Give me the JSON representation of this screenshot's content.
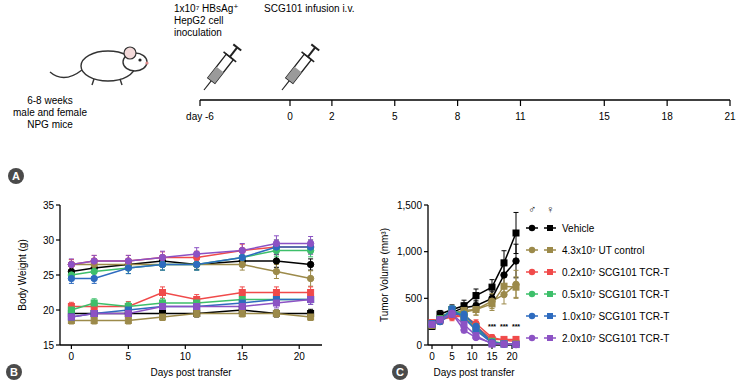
{
  "timeline": {
    "panel_label": "A",
    "subject": [
      "6-8 weeks",
      "male and female",
      "NPG mice"
    ],
    "events": [
      {
        "day": -6,
        "text": [
          "1x10⁷ HBsAg⁺",
          "HepG2 cell",
          "inoculation"
        ]
      },
      {
        "day": 0,
        "text": [
          "SCG101 infusion i.v."
        ]
      }
    ],
    "days": [
      {
        "value": -6,
        "label": "day -6"
      },
      0,
      2,
      5,
      8,
      11,
      15,
      18,
      21
    ]
  },
  "chart_data": [
    {
      "type": "line",
      "panel_label": "B",
      "x_label": "Days post transfer",
      "y_label": "Body Weight (g)",
      "x": [
        0,
        2,
        5,
        8,
        11,
        15,
        18,
        21
      ],
      "xlim": [
        -1,
        22
      ],
      "xticks": [
        0,
        5,
        10,
        15,
        20
      ],
      "ylim": [
        15,
        35
      ],
      "yticks": [
        15,
        20,
        25,
        30,
        35
      ],
      "grid": false,
      "series": [
        {
          "color": "#000000",
          "marker": "circle",
          "values": [
            25.5,
            26,
            26.5,
            27,
            26.5,
            27,
            27,
            26.5
          ],
          "errors": [
            0.8,
            0.7,
            0.7,
            0.8,
            0.7,
            0.8,
            0.9,
            0.8
          ]
        },
        {
          "color": "#000000",
          "marker": "square",
          "values": [
            19.5,
            19.5,
            19.5,
            19.5,
            19.5,
            20,
            19.5,
            19.5
          ],
          "errors": [
            0.5,
            0.5,
            0.5,
            0.5,
            0.5,
            0.6,
            0.5,
            0.6
          ]
        },
        {
          "color": "#9c8a4a",
          "marker": "circle",
          "values": [
            26.5,
            26.5,
            26.5,
            26.5,
            26.5,
            26.5,
            25.5,
            24.5
          ],
          "errors": [
            0.7,
            0.7,
            0.7,
            0.8,
            0.8,
            0.8,
            1.0,
            1.1
          ]
        },
        {
          "color": "#9c8a4a",
          "marker": "square",
          "values": [
            18.5,
            18.5,
            18.5,
            19,
            19.5,
            19.5,
            19.5,
            19
          ],
          "errors": [
            0.5,
            0.5,
            0.5,
            0.5,
            0.5,
            0.5,
            0.5,
            0.5
          ]
        },
        {
          "color": "#f04a4a",
          "marker": "circle",
          "values": [
            26.5,
            27,
            27,
            27.5,
            27.5,
            28.5,
            29,
            29
          ],
          "errors": [
            0.7,
            0.8,
            0.8,
            0.8,
            0.9,
            0.9,
            1.0,
            1.0
          ]
        },
        {
          "color": "#f04a4a",
          "marker": "square",
          "values": [
            20.5,
            20.5,
            20.5,
            22.5,
            21.5,
            22.5,
            22.5,
            22.5
          ],
          "errors": [
            0.6,
            0.6,
            0.7,
            0.8,
            0.7,
            0.8,
            0.8,
            0.8
          ]
        },
        {
          "color": "#3dbf6a",
          "marker": "circle",
          "values": [
            25,
            25.5,
            26,
            26.5,
            26.5,
            27.5,
            28.5,
            28.5
          ],
          "errors": [
            0.7,
            0.7,
            0.8,
            0.8,
            0.8,
            0.9,
            0.9,
            0.9
          ]
        },
        {
          "color": "#3dbf6a",
          "marker": "square",
          "values": [
            20,
            21,
            20.5,
            21,
            21,
            21.5,
            21.5,
            21.5
          ],
          "errors": [
            0.6,
            0.6,
            0.6,
            0.6,
            0.6,
            0.7,
            0.7,
            0.7
          ]
        },
        {
          "color": "#2e6bbf",
          "marker": "circle",
          "values": [
            24.5,
            24.5,
            26,
            26.5,
            26.5,
            27.5,
            29,
            29
          ],
          "errors": [
            0.7,
            0.7,
            0.8,
            0.8,
            0.8,
            0.9,
            1.0,
            1.0
          ]
        },
        {
          "color": "#2e6bbf",
          "marker": "square",
          "values": [
            19,
            19.5,
            20,
            20.5,
            20.5,
            21,
            21.5,
            21.5
          ],
          "errors": [
            0.5,
            0.5,
            0.6,
            0.6,
            0.6,
            0.6,
            0.7,
            0.7
          ]
        },
        {
          "color": "#8c52c4",
          "marker": "circle",
          "values": [
            26.5,
            27,
            27,
            27.5,
            28,
            28.5,
            29.5,
            29.5
          ],
          "errors": [
            0.8,
            0.8,
            0.8,
            0.9,
            0.9,
            1.0,
            1.1,
            1.0
          ]
        },
        {
          "color": "#8c52c4",
          "marker": "square",
          "values": [
            19,
            19.5,
            19.5,
            20.5,
            20.5,
            20.5,
            21,
            21.5
          ],
          "errors": [
            0.5,
            0.5,
            0.5,
            0.6,
            0.6,
            0.6,
            0.7,
            0.7
          ]
        }
      ]
    },
    {
      "type": "line",
      "panel_label": "C",
      "x_label": "Days post transfer",
      "y_label": "Tumor Volume (mm³)",
      "x": [
        0,
        2,
        5,
        8,
        11,
        15,
        18,
        21
      ],
      "xlim": [
        -1,
        22
      ],
      "xticks": [
        0,
        5,
        10,
        15,
        20
      ],
      "ylim": [
        0,
        1500
      ],
      "yticks": [
        0,
        500,
        {
          "value": 1000,
          "label": "1,000"
        },
        {
          "value": 1500,
          "label": "1,500"
        }
      ],
      "grid": false,
      "legend": "right",
      "sex_labels": [
        "♂",
        "♀"
      ],
      "annotations": [
        {
          "x": 15,
          "y": 170,
          "text": "***"
        },
        {
          "x": 18,
          "y": 170,
          "text": "***"
        },
        {
          "x": 21,
          "y": 170,
          "text": "***"
        }
      ],
      "series": [
        {
          "name": "Vehicle",
          "color": "#000000",
          "marker": "circle",
          "values": [
            200,
            300,
            350,
            400,
            420,
            500,
            750,
            900
          ],
          "errors": [
            30,
            40,
            40,
            50,
            60,
            70,
            100,
            180
          ]
        },
        {
          "name": "Vehicle",
          "color": "#000000",
          "marker": "square",
          "values": [
            200,
            330,
            380,
            420,
            530,
            620,
            880,
            1200
          ],
          "errors": [
            30,
            40,
            50,
            60,
            70,
            80,
            130,
            220
          ]
        },
        {
          "name": "4.3x10⁷ UT control",
          "color": "#9c8a4a",
          "marker": "circle",
          "values": [
            220,
            260,
            330,
            350,
            380,
            470,
            540,
            650
          ],
          "errors": [
            30,
            40,
            40,
            60,
            60,
            80,
            100,
            150
          ]
        },
        {
          "name": "4.3x10⁷ UT control",
          "color": "#9c8a4a",
          "marker": "square",
          "values": [
            210,
            280,
            340,
            370,
            380,
            440,
            630,
            620
          ],
          "errors": [
            30,
            40,
            50,
            60,
            60,
            70,
            100,
            110
          ]
        },
        {
          "name": "0.2x10⁷ SCG101 TCR-T",
          "color": "#f04a4a",
          "marker": "circle",
          "values": [
            220,
            270,
            300,
            310,
            230,
            80,
            50,
            40
          ],
          "errors": [
            30,
            30,
            40,
            40,
            40,
            30,
            20,
            20
          ]
        },
        {
          "name": "0.2x10⁷ SCG101 TCR-T",
          "color": "#f04a4a",
          "marker": "square",
          "values": [
            240,
            260,
            340,
            290,
            200,
            60,
            60,
            60
          ],
          "errors": [
            30,
            30,
            40,
            40,
            40,
            20,
            20,
            30
          ]
        },
        {
          "name": "0.5x10⁷ SCG101 TCR-T",
          "color": "#3dbf6a",
          "marker": "circle",
          "values": [
            230,
            260,
            370,
            330,
            200,
            30,
            10,
            5
          ],
          "errors": [
            30,
            30,
            40,
            40,
            40,
            10,
            5,
            5
          ]
        },
        {
          "name": "0.5x10⁷ SCG101 TCR-T",
          "color": "#3dbf6a",
          "marker": "square",
          "values": [
            220,
            280,
            380,
            300,
            170,
            40,
            15,
            10
          ],
          "errors": [
            30,
            30,
            40,
            40,
            40,
            10,
            5,
            5
          ]
        },
        {
          "name": "1.0x10⁷ SCG101 TCR-T",
          "color": "#2e6bbf",
          "marker": "circle",
          "values": [
            220,
            250,
            330,
            330,
            200,
            30,
            10,
            5
          ],
          "errors": [
            30,
            30,
            40,
            40,
            40,
            10,
            5,
            5
          ]
        },
        {
          "name": "1.0x10⁷ SCG101 TCR-T",
          "color": "#2e6bbf",
          "marker": "square",
          "values": [
            230,
            270,
            380,
            290,
            160,
            20,
            10,
            5
          ],
          "errors": [
            30,
            30,
            40,
            40,
            30,
            10,
            5,
            5
          ]
        },
        {
          "name": "2.0x10⁷ SCG101 TCR-T",
          "color": "#8c52c4",
          "marker": "circle",
          "values": [
            220,
            270,
            340,
            160,
            80,
            20,
            10,
            5
          ],
          "errors": [
            30,
            30,
            40,
            30,
            20,
            10,
            5,
            5
          ]
        },
        {
          "name": "2.0x10⁷ SCG101 TCR-T",
          "color": "#8c52c4",
          "marker": "square",
          "values": [
            220,
            270,
            330,
            220,
            100,
            10,
            10,
            5
          ],
          "errors": [
            30,
            30,
            40,
            30,
            20,
            5,
            5,
            5
          ]
        }
      ]
    }
  ]
}
